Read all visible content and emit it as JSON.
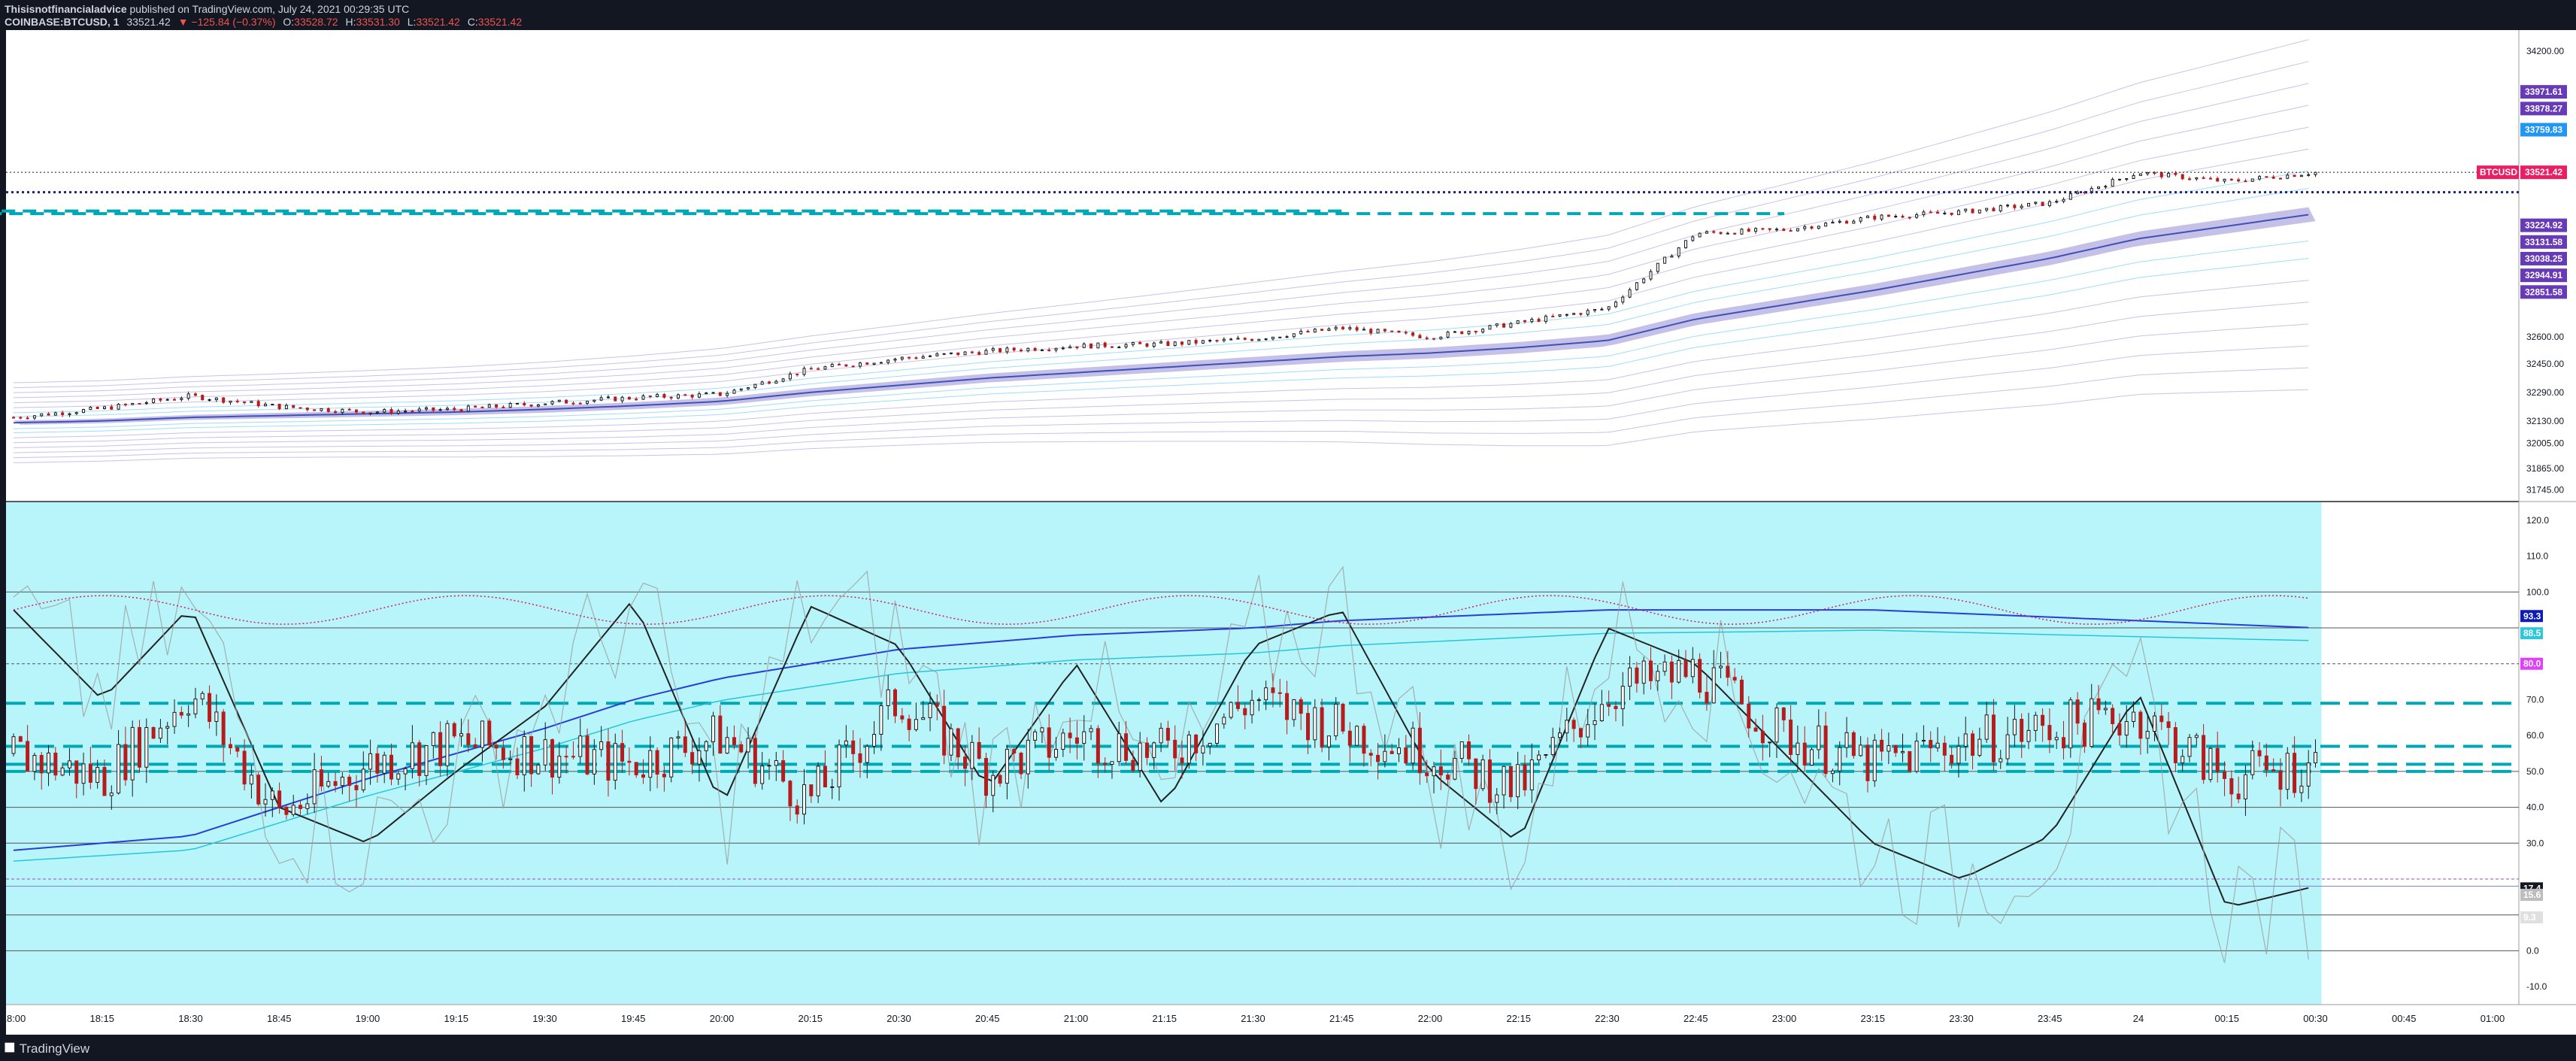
{
  "header": {
    "author": "Thisisnotfinancialadvice",
    "published": "published on TradingView.com, July 24, 2021 00:29:35 UTC",
    "symbol": "COINBASE:BTCUSD, 1",
    "last": "33521.42",
    "change": "▼ −125.84 (−0.37%)",
    "open_label": "O:",
    "open": "33528.72",
    "high_label": "H:",
    "high": "33531.30",
    "low_label": "L:",
    "low": "33521.42",
    "close_label": "C:",
    "close": "33521.42"
  },
  "footer": {
    "brand": "TradingView"
  },
  "colors": {
    "background": "#131722",
    "panel": "#ffffff",
    "oscillator_bg": "#b8f5fa",
    "up_candle": "#1a1a1a",
    "down_candle": "#b71c1c",
    "band_line": "#9c8fd6",
    "ribbon_fill": "#7e74c9",
    "dashed_level": "#00a8b5",
    "price_tag": "#e91e63",
    "level_tag": "#673ab7"
  },
  "chart_data": [
    {
      "type": "line",
      "title": "COINBASE:BTCUSD, 1",
      "ylim": [
        31700,
        34250
      ],
      "y_ticks": [
        34200.0,
        31745.0,
        31865.0,
        32005.0,
        32130.0,
        32290.0,
        32450.0,
        32600.0
      ],
      "price_levels": [
        {
          "label": "33971.61",
          "value": 33971.61,
          "color": "#673ab7"
        },
        {
          "label": "33878.27",
          "value": 33878.27,
          "color": "#673ab7"
        },
        {
          "label": "33759.83",
          "value": 33759.83,
          "color": "#2196f3"
        },
        {
          "label": "33224.92",
          "value": 33224.92,
          "color": "#673ab7"
        },
        {
          "label": "33131.58",
          "value": 33131.58,
          "color": "#673ab7"
        },
        {
          "label": "33038.25",
          "value": 33038.25,
          "color": "#673ab7"
        },
        {
          "label": "32944.91",
          "value": 32944.91,
          "color": "#673ab7"
        },
        {
          "label": "32851.58",
          "value": 32851.58,
          "color": "#673ab7"
        }
      ],
      "last_price": {
        "symbol": "BTCUSD",
        "value": 33521.42
      },
      "dotted_level": 33410,
      "dashed_levels": [
        {
          "x_from": "21:45",
          "x_to": "22:40",
          "value": 33305
        },
        {
          "x_from": "22:40",
          "x_to": "23:00",
          "value": 33290
        },
        {
          "x_from": "23:25",
          "x_to": "23:55",
          "value": 33210
        }
      ],
      "x_times": [
        "18:00",
        "18:15",
        "18:30",
        "18:45",
        "19:00",
        "19:15",
        "19:30",
        "19:45",
        "20:00",
        "20:15",
        "20:30",
        "20:45",
        "21:00",
        "21:15",
        "21:30",
        "21:45",
        "22:00",
        "22:15",
        "22:30",
        "22:45",
        "23:00",
        "23:15",
        "23:30",
        "23:45",
        "24",
        "00:15",
        "00:30"
      ],
      "series": [
        {
          "name": "BTCUSD",
          "values": [
            32150,
            32200,
            32270,
            32210,
            32180,
            32195,
            32230,
            32260,
            32280,
            32420,
            32480,
            32520,
            32550,
            32560,
            32590,
            32650,
            32600,
            32680,
            32760,
            33180,
            33200,
            33270,
            33300,
            33350,
            33520,
            33470,
            33521
          ]
        },
        {
          "name": "VWAP",
          "values": [
            32120,
            32130,
            32150,
            32160,
            32170,
            32180,
            32195,
            32215,
            32240,
            32290,
            32330,
            32370,
            32400,
            32430,
            32460,
            32490,
            32510,
            32540,
            32580,
            32700,
            32780,
            32860,
            32950,
            33040,
            33150,
            33220,
            33290
          ]
        }
      ]
    },
    {
      "type": "line",
      "ylim": [
        -15,
        125
      ],
      "y_ticks": [
        120.0,
        110.0,
        100.0,
        70.0,
        60.0,
        50.0,
        40.0,
        30.0,
        0.0,
        -10.0
      ],
      "levels": [
        {
          "label": "93.3",
          "value": 93.3,
          "color": "#0d1bb8"
        },
        {
          "label": "88.5",
          "value": 88.5,
          "color": "#2ec7d9"
        },
        {
          "label": "80.0",
          "value": 80.0,
          "color": "#e040fb"
        },
        {
          "label": "17.4",
          "value": 17.4,
          "color": "#131722"
        },
        {
          "label": "15.6",
          "value": 15.6,
          "color": "#bdbdbd"
        },
        {
          "label": "9.3",
          "value": 9.3,
          "color": "#e0e0e0"
        }
      ],
      "h_lines": [
        100,
        90,
        50,
        40,
        30,
        10,
        0
      ],
      "dashed_levels": [
        69,
        57,
        52,
        50
      ],
      "x_times": [
        "18:00",
        "18:15",
        "18:30",
        "18:45",
        "19:00",
        "19:15",
        "19:30",
        "19:45",
        "20:00",
        "20:15",
        "20:30",
        "20:45",
        "21:00",
        "21:15",
        "21:30",
        "21:45",
        "22:00",
        "22:15",
        "22:30",
        "22:45",
        "23:00",
        "23:15",
        "23:30",
        "23:45",
        "24",
        "00:15",
        "00:30"
      ],
      "series": [
        {
          "name": "Oscillator",
          "values": [
            55,
            48,
            72,
            38,
            52,
            58,
            55,
            52,
            60,
            42,
            70,
            50,
            60,
            55,
            70,
            62,
            55,
            45,
            72,
            78,
            60,
            52,
            58,
            62,
            66,
            48,
            52
          ]
        },
        {
          "name": "Smooth",
          "values": [
            95,
            70,
            96,
            40,
            30,
            50,
            68,
            98,
            40,
            96,
            85,
            45,
            80,
            40,
            85,
            95,
            50,
            30,
            90,
            80,
            55,
            30,
            20,
            32,
            72,
            12,
            18
          ]
        },
        {
          "name": "Slow",
          "values": [
            28,
            30,
            32,
            40,
            48,
            55,
            62,
            70,
            76,
            80,
            84,
            86,
            88,
            89,
            90,
            92,
            93,
            94,
            95,
            95,
            95,
            95,
            94,
            93,
            92,
            91,
            90
          ]
        }
      ]
    }
  ],
  "time_axis": [
    "18:00",
    "18:15",
    "18:30",
    "18:45",
    "19:00",
    "19:15",
    "19:30",
    "19:45",
    "20:00",
    "20:15",
    "20:30",
    "20:45",
    "21:00",
    "21:15",
    "21:30",
    "21:45",
    "22:00",
    "22:15",
    "22:30",
    "22:45",
    "23:00",
    "23:15",
    "23:30",
    "23:45",
    "24",
    "00:15",
    "00:30",
    "00:45",
    "01:00"
  ]
}
